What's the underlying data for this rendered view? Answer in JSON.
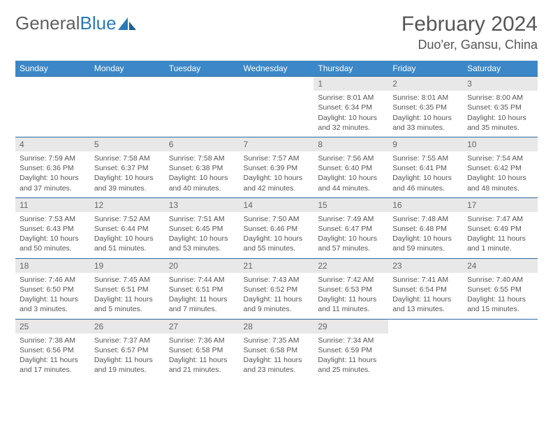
{
  "brand": {
    "part1": "General",
    "part2": "Blue"
  },
  "title": "February 2024",
  "location": "Duo'er, Gansu, China",
  "colors": {
    "header_bg": "#3b87c7",
    "header_text": "#ffffff",
    "row_border": "#2a6aa0",
    "daynum_bg": "#e8e8e8",
    "text": "#555555",
    "logo_accent": "#2a7ab9"
  },
  "day_headers": [
    "Sunday",
    "Monday",
    "Tuesday",
    "Wednesday",
    "Thursday",
    "Friday",
    "Saturday"
  ],
  "weeks": [
    [
      {
        "empty": true
      },
      {
        "empty": true
      },
      {
        "empty": true
      },
      {
        "empty": true
      },
      {
        "n": "1",
        "sr": "Sunrise: 8:01 AM",
        "ss": "Sunset: 6:34 PM",
        "dl": "Daylight: 10 hours and 32 minutes."
      },
      {
        "n": "2",
        "sr": "Sunrise: 8:01 AM",
        "ss": "Sunset: 6:35 PM",
        "dl": "Daylight: 10 hours and 33 minutes."
      },
      {
        "n": "3",
        "sr": "Sunrise: 8:00 AM",
        "ss": "Sunset: 6:35 PM",
        "dl": "Daylight: 10 hours and 35 minutes."
      }
    ],
    [
      {
        "n": "4",
        "sr": "Sunrise: 7:59 AM",
        "ss": "Sunset: 6:36 PM",
        "dl": "Daylight: 10 hours and 37 minutes."
      },
      {
        "n": "5",
        "sr": "Sunrise: 7:58 AM",
        "ss": "Sunset: 6:37 PM",
        "dl": "Daylight: 10 hours and 39 minutes."
      },
      {
        "n": "6",
        "sr": "Sunrise: 7:58 AM",
        "ss": "Sunset: 6:38 PM",
        "dl": "Daylight: 10 hours and 40 minutes."
      },
      {
        "n": "7",
        "sr": "Sunrise: 7:57 AM",
        "ss": "Sunset: 6:39 PM",
        "dl": "Daylight: 10 hours and 42 minutes."
      },
      {
        "n": "8",
        "sr": "Sunrise: 7:56 AM",
        "ss": "Sunset: 6:40 PM",
        "dl": "Daylight: 10 hours and 44 minutes."
      },
      {
        "n": "9",
        "sr": "Sunrise: 7:55 AM",
        "ss": "Sunset: 6:41 PM",
        "dl": "Daylight: 10 hours and 46 minutes."
      },
      {
        "n": "10",
        "sr": "Sunrise: 7:54 AM",
        "ss": "Sunset: 6:42 PM",
        "dl": "Daylight: 10 hours and 48 minutes."
      }
    ],
    [
      {
        "n": "11",
        "sr": "Sunrise: 7:53 AM",
        "ss": "Sunset: 6:43 PM",
        "dl": "Daylight: 10 hours and 50 minutes."
      },
      {
        "n": "12",
        "sr": "Sunrise: 7:52 AM",
        "ss": "Sunset: 6:44 PM",
        "dl": "Daylight: 10 hours and 51 minutes."
      },
      {
        "n": "13",
        "sr": "Sunrise: 7:51 AM",
        "ss": "Sunset: 6:45 PM",
        "dl": "Daylight: 10 hours and 53 minutes."
      },
      {
        "n": "14",
        "sr": "Sunrise: 7:50 AM",
        "ss": "Sunset: 6:46 PM",
        "dl": "Daylight: 10 hours and 55 minutes."
      },
      {
        "n": "15",
        "sr": "Sunrise: 7:49 AM",
        "ss": "Sunset: 6:47 PM",
        "dl": "Daylight: 10 hours and 57 minutes."
      },
      {
        "n": "16",
        "sr": "Sunrise: 7:48 AM",
        "ss": "Sunset: 6:48 PM",
        "dl": "Daylight: 10 hours and 59 minutes."
      },
      {
        "n": "17",
        "sr": "Sunrise: 7:47 AM",
        "ss": "Sunset: 6:49 PM",
        "dl": "Daylight: 11 hours and 1 minute."
      }
    ],
    [
      {
        "n": "18",
        "sr": "Sunrise: 7:46 AM",
        "ss": "Sunset: 6:50 PM",
        "dl": "Daylight: 11 hours and 3 minutes."
      },
      {
        "n": "19",
        "sr": "Sunrise: 7:45 AM",
        "ss": "Sunset: 6:51 PM",
        "dl": "Daylight: 11 hours and 5 minutes."
      },
      {
        "n": "20",
        "sr": "Sunrise: 7:44 AM",
        "ss": "Sunset: 6:51 PM",
        "dl": "Daylight: 11 hours and 7 minutes."
      },
      {
        "n": "21",
        "sr": "Sunrise: 7:43 AM",
        "ss": "Sunset: 6:52 PM",
        "dl": "Daylight: 11 hours and 9 minutes."
      },
      {
        "n": "22",
        "sr": "Sunrise: 7:42 AM",
        "ss": "Sunset: 6:53 PM",
        "dl": "Daylight: 11 hours and 11 minutes."
      },
      {
        "n": "23",
        "sr": "Sunrise: 7:41 AM",
        "ss": "Sunset: 6:54 PM",
        "dl": "Daylight: 11 hours and 13 minutes."
      },
      {
        "n": "24",
        "sr": "Sunrise: 7:40 AM",
        "ss": "Sunset: 6:55 PM",
        "dl": "Daylight: 11 hours and 15 minutes."
      }
    ],
    [
      {
        "n": "25",
        "sr": "Sunrise: 7:38 AM",
        "ss": "Sunset: 6:56 PM",
        "dl": "Daylight: 11 hours and 17 minutes."
      },
      {
        "n": "26",
        "sr": "Sunrise: 7:37 AM",
        "ss": "Sunset: 6:57 PM",
        "dl": "Daylight: 11 hours and 19 minutes."
      },
      {
        "n": "27",
        "sr": "Sunrise: 7:36 AM",
        "ss": "Sunset: 6:58 PM",
        "dl": "Daylight: 11 hours and 21 minutes."
      },
      {
        "n": "28",
        "sr": "Sunrise: 7:35 AM",
        "ss": "Sunset: 6:58 PM",
        "dl": "Daylight: 11 hours and 23 minutes."
      },
      {
        "n": "29",
        "sr": "Sunrise: 7:34 AM",
        "ss": "Sunset: 6:59 PM",
        "dl": "Daylight: 11 hours and 25 minutes."
      },
      {
        "empty": true
      },
      {
        "empty": true
      }
    ]
  ]
}
